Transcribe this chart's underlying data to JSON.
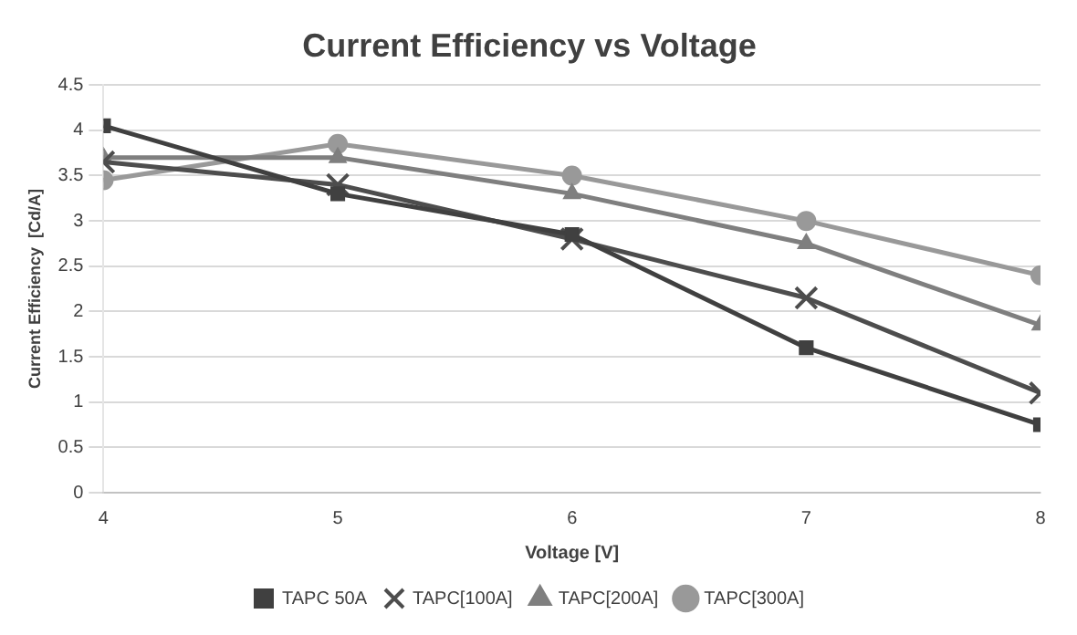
{
  "chart_data": {
    "type": "line",
    "title": "Current Efficiency vs Voltage",
    "xlabel": "Voltage [V]",
    "ylabel": "Current Efficiency  [Cd/A]",
    "x": [
      4,
      5,
      6,
      7,
      8
    ],
    "xlim": [
      4,
      8
    ],
    "xticks": [
      4,
      5,
      6,
      7,
      8
    ],
    "ylim": [
      0,
      4.5
    ],
    "yticks": [
      0,
      0.5,
      1,
      1.5,
      2,
      2.5,
      3,
      3.5,
      4,
      4.5
    ],
    "grid": "y",
    "legend": "bottom",
    "series": [
      {
        "name": "TAPC 50A",
        "color": "#404040",
        "marker": "square",
        "values": [
          4.05,
          3.3,
          2.85,
          1.6,
          0.75
        ]
      },
      {
        "name": "TAPC[100A]",
        "color": "#4d4d4d",
        "marker": "cross",
        "values": [
          3.65,
          3.4,
          2.8,
          2.15,
          1.1
        ]
      },
      {
        "name": "TAPC[200A]",
        "color": "#7f7f7f",
        "marker": "triangle",
        "values": [
          3.7,
          3.7,
          3.3,
          2.75,
          1.85
        ]
      },
      {
        "name": "TAPC[300A]",
        "color": "#999999",
        "marker": "circle",
        "values": [
          3.45,
          3.85,
          3.5,
          3.0,
          2.4
        ]
      }
    ]
  }
}
